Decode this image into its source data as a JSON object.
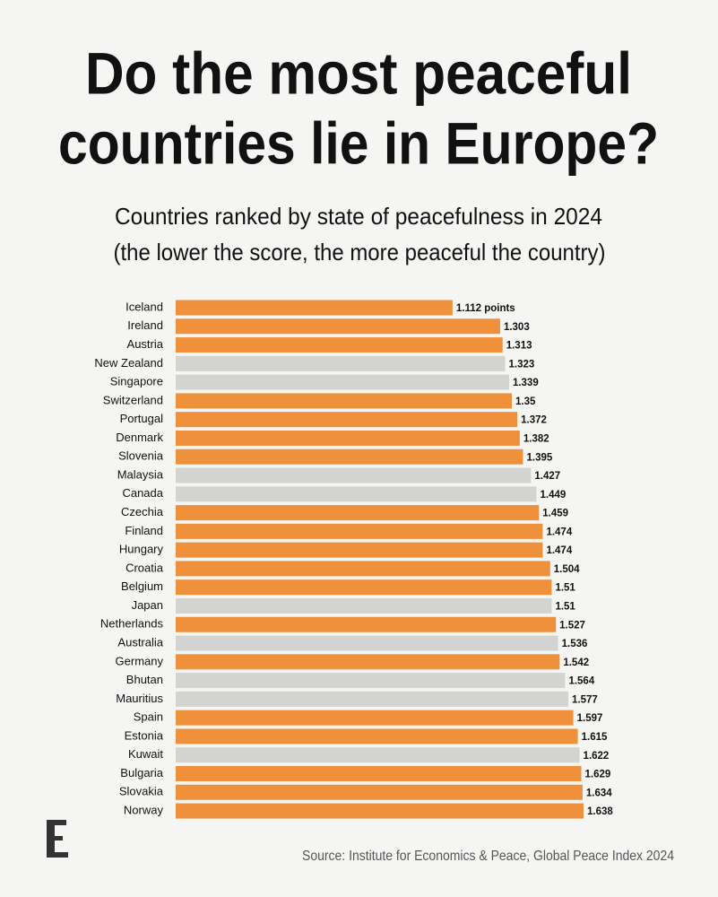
{
  "chart_data": {
    "type": "bar",
    "orientation": "horizontal",
    "title": [
      "Do the most peaceful",
      "countries lie in Europe?"
    ],
    "subtitle": [
      "Countries ranked by state of peacefulness in 2024",
      "(the lower the score, the more peaceful the country)"
    ],
    "source": "Source: Institute for Economics & Peace, Global Peace Index 2024",
    "categories": [
      "Iceland",
      "Ireland",
      "Austria",
      "New Zealand",
      "Singapore",
      "Switzerland",
      "Portugal",
      "Denmark",
      "Slovenia",
      "Malaysia",
      "Canada",
      "Czechia",
      "Finland",
      "Hungary",
      "Croatia",
      "Belgium",
      "Japan",
      "Netherlands",
      "Australia",
      "Germany",
      "Bhutan",
      "Mauritius",
      "Spain",
      "Estonia",
      "Kuwait",
      "Bulgaria",
      "Slovakia",
      "Norway"
    ],
    "values": [
      1.112,
      1.303,
      1.313,
      1.323,
      1.339,
      1.35,
      1.372,
      1.382,
      1.395,
      1.427,
      1.449,
      1.459,
      1.474,
      1.474,
      1.504,
      1.51,
      1.51,
      1.527,
      1.536,
      1.542,
      1.564,
      1.577,
      1.597,
      1.615,
      1.622,
      1.629,
      1.634,
      1.638
    ],
    "value_labels": [
      "1.112 points",
      "1.303",
      "1.313",
      "1.323",
      "1.339",
      "1.35",
      "1.372",
      "1.382",
      "1.395",
      "1.427",
      "1.449",
      "1.459",
      "1.474",
      "1.474",
      "1.504",
      "1.51",
      "1.51",
      "1.527",
      "1.536",
      "1.542",
      "1.564",
      "1.577",
      "1.597",
      "1.615",
      "1.622",
      "1.629",
      "1.634",
      "1.638"
    ],
    "colors": [
      "#ef913b",
      "#ef913b",
      "#ef913b",
      "#d3d3d1",
      "#d3d3d1",
      "#ef913b",
      "#ef913b",
      "#ef913b",
      "#ef913b",
      "#d3d3d1",
      "#d3d3d1",
      "#ef913b",
      "#ef913b",
      "#ef913b",
      "#ef913b",
      "#ef913b",
      "#d3d3d1",
      "#ef913b",
      "#d3d3d1",
      "#ef913b",
      "#d3d3d1",
      "#d3d3d1",
      "#ef913b",
      "#ef913b",
      "#d3d3d1",
      "#ef913b",
      "#ef913b",
      "#ef913b"
    ]
  }
}
